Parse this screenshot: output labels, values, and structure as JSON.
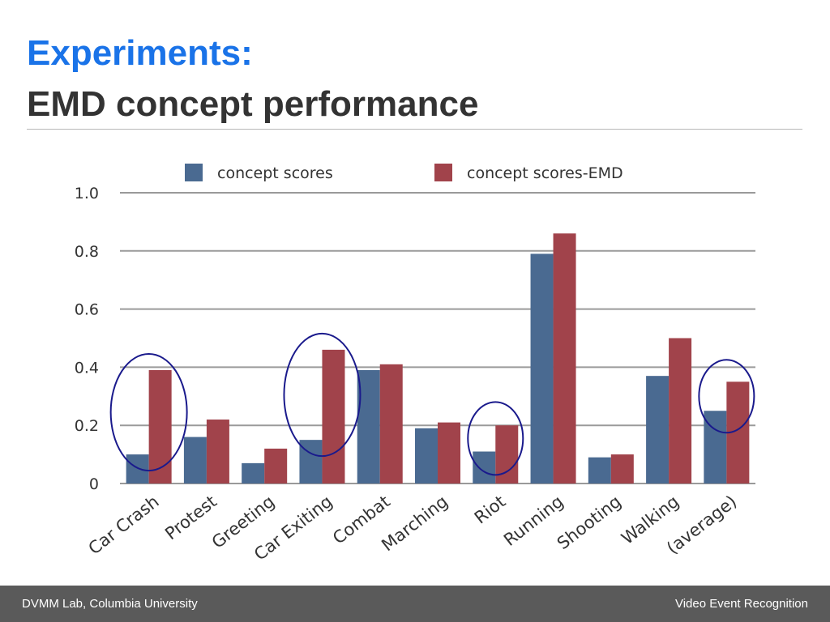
{
  "slide": {
    "title_line1": "Experiments:",
    "title_line2": "EMD concept performance"
  },
  "footer": {
    "left": "DVMM Lab, Columbia University",
    "right": "Video Event Recognition"
  },
  "colors": {
    "title_accent": "#1a73e8",
    "series_1": "#4a6a91",
    "series_2": "#a1434b",
    "circle": "#1a1a8c",
    "footer_bg": "#5a5a5a"
  },
  "chart_data": {
    "type": "bar",
    "categories": [
      "Car Crash",
      "Protest",
      "Greeting",
      "Car Exiting",
      "Combat",
      "Marching",
      "Riot",
      "Running",
      "Shooting",
      "Walking",
      "(average)"
    ],
    "series": [
      {
        "name": "concept scores",
        "values": [
          0.1,
          0.16,
          0.07,
          0.15,
          0.39,
          0.19,
          0.11,
          0.79,
          0.09,
          0.37,
          0.25
        ]
      },
      {
        "name": "concept scores-EMD",
        "values": [
          0.39,
          0.22,
          0.12,
          0.46,
          0.41,
          0.21,
          0.2,
          0.86,
          0.1,
          0.5,
          0.35
        ]
      }
    ],
    "ylim": [
      0,
      1.0
    ],
    "yticks": [
      "0",
      "0.2",
      "0.4",
      "0.6",
      "0.8",
      "1.0"
    ],
    "grid": true,
    "legend_position": "top",
    "highlighted_categories": [
      "Car Crash",
      "Car Exiting",
      "Riot",
      "(average)"
    ]
  }
}
